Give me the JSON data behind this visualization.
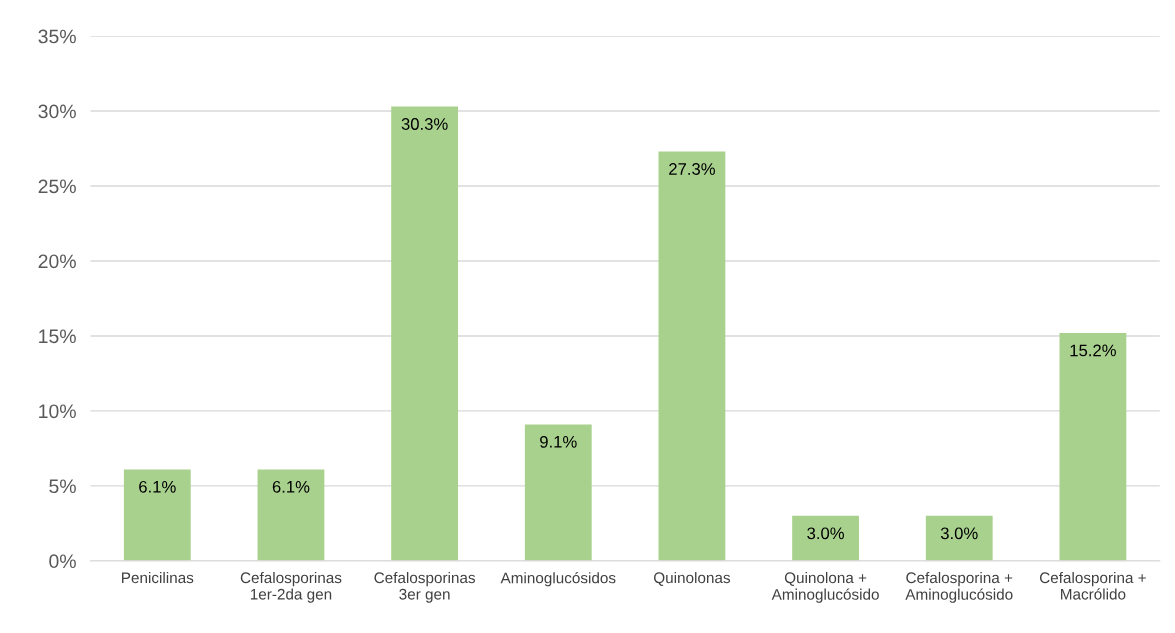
{
  "chart_data": {
    "type": "bar",
    "categories": [
      "Penicilinas",
      "Cefalosporinas\n1er-2da gen",
      "Cefalosporinas\n3er gen",
      "Aminoglucósidos",
      "Quinolonas",
      "Quinolona +\nAminoglucósido",
      "Cefalosporina +\nAminoglucósido",
      "Cefalosporina +\nMacrólido"
    ],
    "values": [
      6.1,
      6.1,
      30.3,
      9.1,
      27.3,
      3.0,
      3.0,
      15.2
    ],
    "value_labels": [
      "6.1%",
      "6.1%",
      "30.3%",
      "9.1%",
      "27.3%",
      "3.0%",
      "3.0%",
      "15.2%"
    ],
    "color": "#a9d18e",
    "ylim": [
      0,
      35
    ],
    "yticks": [
      {
        "value": 0,
        "label": "0%"
      },
      {
        "value": 5,
        "label": "5%"
      },
      {
        "value": 10,
        "label": "10%"
      },
      {
        "value": 15,
        "label": "15%"
      },
      {
        "value": 20,
        "label": "20%"
      },
      {
        "value": 25,
        "label": "25%"
      },
      {
        "value": 30,
        "label": "30%"
      },
      {
        "value": 35,
        "label": "35%"
      }
    ],
    "grid": "y"
  }
}
